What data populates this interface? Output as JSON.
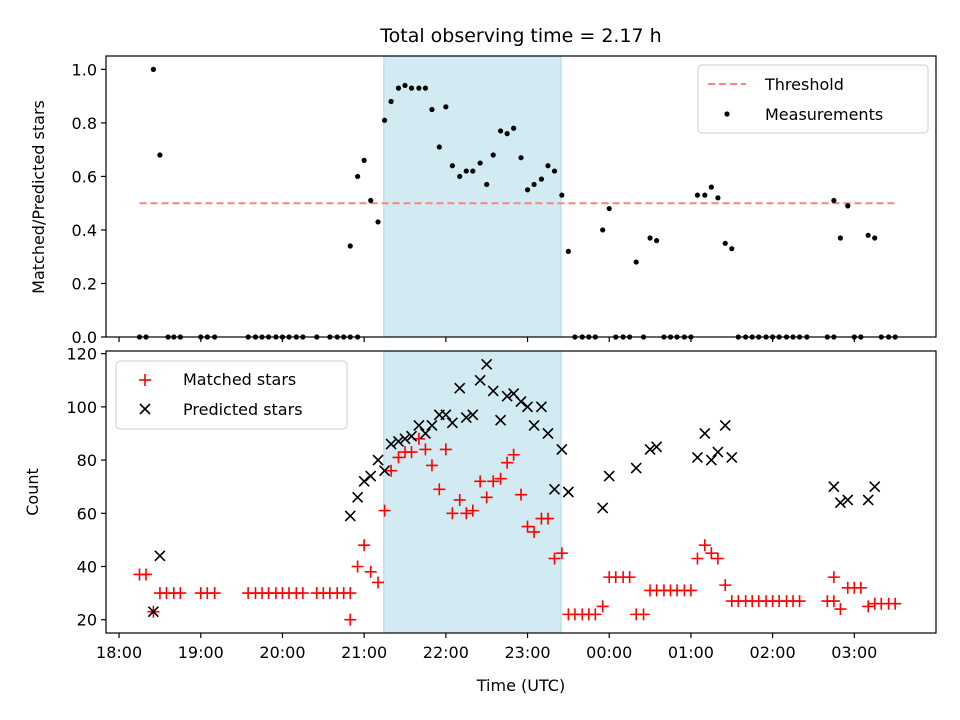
{
  "chart_data": {
    "title": "Total observing time = 2.17 h",
    "xlabel": "Time (UTC)",
    "x_unit": "hours since 18:00 UTC (x axis spans 17:50 to 04:00 next day)",
    "xlim": [
      -0.16,
      10.0
    ],
    "xticks": [
      {
        "x": 0,
        "label": "18:00"
      },
      {
        "x": 1,
        "label": "19:00"
      },
      {
        "x": 2,
        "label": "20:00"
      },
      {
        "x": 3,
        "label": "21:00"
      },
      {
        "x": 4,
        "label": "22:00"
      },
      {
        "x": 5,
        "label": "23:00"
      },
      {
        "x": 6,
        "label": "00:00"
      },
      {
        "x": 7,
        "label": "01:00"
      },
      {
        "x": 8,
        "label": "02:00"
      },
      {
        "x": 9,
        "label": "03:00"
      }
    ],
    "shaded_interval": {
      "start": 3.24,
      "end": 5.41,
      "color": "#add8e6"
    },
    "top": {
      "type": "scatter",
      "ylabel": "Matched/Predicted stars",
      "ylim": [
        0,
        1.05
      ],
      "yticks": [
        0.0,
        0.2,
        0.4,
        0.6,
        0.8,
        1.0
      ],
      "ytick_labels": [
        "0.0",
        "0.2",
        "0.4",
        "0.6",
        "0.8",
        "1.0"
      ],
      "legend": {
        "position": "upper right",
        "entries": [
          "Threshold",
          "Measurements"
        ]
      },
      "threshold": {
        "name": "Threshold",
        "value": 0.5,
        "x_start": 0.25,
        "x_end": 9.5,
        "color": "#ff8080",
        "style": "dashed"
      },
      "measurements": {
        "name": "Measurements",
        "color": "#000000",
        "points": [
          [
            0.25,
            0.0
          ],
          [
            0.33,
            0.0
          ],
          [
            0.42,
            1.0
          ],
          [
            0.5,
            0.68
          ],
          [
            0.6,
            0.0
          ],
          [
            0.67,
            0.0
          ],
          [
            0.75,
            0.0
          ],
          [
            1.0,
            0.0
          ],
          [
            1.08,
            0.0
          ],
          [
            1.17,
            0.0
          ],
          [
            1.58,
            0.0
          ],
          [
            1.67,
            0.0
          ],
          [
            1.75,
            0.0
          ],
          [
            1.83,
            0.0
          ],
          [
            1.92,
            0.0
          ],
          [
            2.0,
            0.0
          ],
          [
            2.08,
            0.0
          ],
          [
            2.17,
            0.0
          ],
          [
            2.25,
            0.0
          ],
          [
            2.42,
            0.0
          ],
          [
            2.58,
            0.0
          ],
          [
            2.67,
            0.0
          ],
          [
            2.75,
            0.0
          ],
          [
            2.83,
            0.0
          ],
          [
            2.92,
            0.0
          ],
          [
            2.83,
            0.34
          ],
          [
            2.92,
            0.6
          ],
          [
            3.0,
            0.66
          ],
          [
            3.08,
            0.51
          ],
          [
            3.17,
            0.43
          ],
          [
            3.25,
            0.81
          ],
          [
            3.33,
            0.88
          ],
          [
            3.42,
            0.93
          ],
          [
            3.5,
            0.94
          ],
          [
            3.58,
            0.93
          ],
          [
            3.67,
            0.93
          ],
          [
            3.75,
            0.93
          ],
          [
            3.83,
            0.85
          ],
          [
            3.92,
            0.71
          ],
          [
            4.0,
            0.86
          ],
          [
            4.08,
            0.64
          ],
          [
            4.17,
            0.6
          ],
          [
            4.25,
            0.62
          ],
          [
            4.33,
            0.62
          ],
          [
            4.42,
            0.65
          ],
          [
            4.5,
            0.57
          ],
          [
            4.58,
            0.68
          ],
          [
            4.67,
            0.77
          ],
          [
            4.75,
            0.76
          ],
          [
            4.83,
            0.78
          ],
          [
            4.92,
            0.67
          ],
          [
            5.0,
            0.55
          ],
          [
            5.08,
            0.57
          ],
          [
            5.17,
            0.59
          ],
          [
            5.25,
            0.64
          ],
          [
            5.33,
            0.62
          ],
          [
            5.42,
            0.53
          ],
          [
            5.5,
            0.32
          ],
          [
            5.58,
            0.0
          ],
          [
            5.67,
            0.0
          ],
          [
            5.75,
            0.0
          ],
          [
            5.83,
            0.0
          ],
          [
            5.92,
            0.4
          ],
          [
            6.0,
            0.48
          ],
          [
            6.08,
            0.0
          ],
          [
            6.17,
            0.0
          ],
          [
            6.25,
            0.0
          ],
          [
            6.33,
            0.28
          ],
          [
            6.42,
            0.0
          ],
          [
            6.5,
            0.37
          ],
          [
            6.58,
            0.36
          ],
          [
            6.67,
            0.0
          ],
          [
            6.75,
            0.0
          ],
          [
            6.83,
            0.0
          ],
          [
            6.92,
            0.0
          ],
          [
            7.0,
            0.0
          ],
          [
            7.08,
            0.53
          ],
          [
            7.17,
            0.53
          ],
          [
            7.25,
            0.56
          ],
          [
            7.33,
            0.52
          ],
          [
            7.42,
            0.35
          ],
          [
            7.5,
            0.33
          ],
          [
            7.58,
            0.0
          ],
          [
            7.67,
            0.0
          ],
          [
            7.75,
            0.0
          ],
          [
            7.83,
            0.0
          ],
          [
            7.92,
            0.0
          ],
          [
            8.0,
            0.0
          ],
          [
            8.08,
            0.0
          ],
          [
            8.17,
            0.0
          ],
          [
            8.25,
            0.0
          ],
          [
            8.33,
            0.0
          ],
          [
            8.42,
            0.0
          ],
          [
            8.67,
            0.0
          ],
          [
            8.75,
            0.0
          ],
          [
            8.75,
            0.51
          ],
          [
            8.83,
            0.37
          ],
          [
            8.92,
            0.49
          ],
          [
            9.0,
            0.0
          ],
          [
            9.08,
            0.0
          ],
          [
            9.17,
            0.38
          ],
          [
            9.25,
            0.37
          ],
          [
            9.33,
            0.0
          ],
          [
            9.42,
            0.0
          ],
          [
            9.5,
            0.0
          ]
        ]
      }
    },
    "bottom": {
      "type": "scatter",
      "ylabel": "Count",
      "ylim": [
        15,
        121
      ],
      "yticks": [
        20,
        40,
        60,
        80,
        100,
        120
      ],
      "ytick_labels": [
        "20",
        "40",
        "60",
        "80",
        "100",
        "120"
      ],
      "legend": {
        "position": "upper left",
        "entries": [
          "Matched stars",
          "Predicted stars"
        ]
      },
      "series": [
        {
          "name": "Matched stars",
          "marker": "+",
          "color": "#ff0000",
          "points": [
            [
              0.25,
              37
            ],
            [
              0.33,
              37
            ],
            [
              0.42,
              23
            ],
            [
              0.5,
              30
            ],
            [
              0.58,
              30
            ],
            [
              0.67,
              30
            ],
            [
              0.75,
              30
            ],
            [
              1.0,
              30
            ],
            [
              1.08,
              30
            ],
            [
              1.17,
              30
            ],
            [
              1.58,
              30
            ],
            [
              1.67,
              30
            ],
            [
              1.75,
              30
            ],
            [
              1.83,
              30
            ],
            [
              1.92,
              30
            ],
            [
              2.0,
              30
            ],
            [
              2.08,
              30
            ],
            [
              2.17,
              30
            ],
            [
              2.25,
              30
            ],
            [
              2.42,
              30
            ],
            [
              2.5,
              30
            ],
            [
              2.58,
              30
            ],
            [
              2.67,
              30
            ],
            [
              2.75,
              30
            ],
            [
              2.83,
              30
            ],
            [
              2.83,
              20
            ],
            [
              2.92,
              40
            ],
            [
              3.0,
              48
            ],
            [
              3.08,
              38
            ],
            [
              3.17,
              34
            ],
            [
              3.25,
              61
            ],
            [
              3.33,
              76
            ],
            [
              3.42,
              81
            ],
            [
              3.5,
              83
            ],
            [
              3.58,
              83
            ],
            [
              3.67,
              88
            ],
            [
              3.75,
              84
            ],
            [
              3.83,
              78
            ],
            [
              3.92,
              69
            ],
            [
              4.0,
              84
            ],
            [
              4.08,
              60
            ],
            [
              4.17,
              65
            ],
            [
              4.25,
              60
            ],
            [
              4.33,
              61
            ],
            [
              4.42,
              72
            ],
            [
              4.5,
              66
            ],
            [
              4.58,
              72
            ],
            [
              4.67,
              73
            ],
            [
              4.75,
              79
            ],
            [
              4.83,
              82
            ],
            [
              4.92,
              67
            ],
            [
              5.0,
              55
            ],
            [
              5.08,
              53
            ],
            [
              5.17,
              58
            ],
            [
              5.25,
              58
            ],
            [
              5.33,
              43
            ],
            [
              5.42,
              45
            ],
            [
              5.5,
              22
            ],
            [
              5.58,
              22
            ],
            [
              5.67,
              22
            ],
            [
              5.75,
              22
            ],
            [
              5.83,
              22
            ],
            [
              5.92,
              25
            ],
            [
              6.0,
              36
            ],
            [
              6.08,
              36
            ],
            [
              6.17,
              36
            ],
            [
              6.25,
              36
            ],
            [
              6.33,
              22
            ],
            [
              6.42,
              22
            ],
            [
              6.5,
              31
            ],
            [
              6.58,
              31
            ],
            [
              6.67,
              31
            ],
            [
              6.75,
              31
            ],
            [
              6.83,
              31
            ],
            [
              6.92,
              31
            ],
            [
              7.0,
              31
            ],
            [
              7.08,
              43
            ],
            [
              7.17,
              48
            ],
            [
              7.25,
              45
            ],
            [
              7.33,
              43
            ],
            [
              7.42,
              33
            ],
            [
              7.5,
              27
            ],
            [
              7.58,
              27
            ],
            [
              7.67,
              27
            ],
            [
              7.75,
              27
            ],
            [
              7.83,
              27
            ],
            [
              7.92,
              27
            ],
            [
              8.0,
              27
            ],
            [
              8.08,
              27
            ],
            [
              8.17,
              27
            ],
            [
              8.25,
              27
            ],
            [
              8.33,
              27
            ],
            [
              8.67,
              27
            ],
            [
              8.75,
              27
            ],
            [
              8.75,
              36
            ],
            [
              8.83,
              24
            ],
            [
              8.92,
              32
            ],
            [
              9.0,
              32
            ],
            [
              9.08,
              32
            ],
            [
              9.17,
              25
            ],
            [
              9.25,
              26
            ],
            [
              9.33,
              26
            ],
            [
              9.42,
              26
            ],
            [
              9.5,
              26
            ]
          ]
        },
        {
          "name": "Predicted stars",
          "marker": "x",
          "color": "#000000",
          "points": [
            [
              0.42,
              23
            ],
            [
              0.5,
              44
            ],
            [
              2.83,
              59
            ],
            [
              2.92,
              66
            ],
            [
              3.0,
              72
            ],
            [
              3.08,
              74
            ],
            [
              3.17,
              80
            ],
            [
              3.25,
              76
            ],
            [
              3.33,
              86
            ],
            [
              3.42,
              87
            ],
            [
              3.5,
              88
            ],
            [
              3.58,
              89
            ],
            [
              3.67,
              93
            ],
            [
              3.75,
              90
            ],
            [
              3.83,
              93
            ],
            [
              3.92,
              97
            ],
            [
              4.0,
              97
            ],
            [
              4.08,
              94
            ],
            [
              4.17,
              107
            ],
            [
              4.25,
              96
            ],
            [
              4.33,
              97
            ],
            [
              4.42,
              110
            ],
            [
              4.5,
              116
            ],
            [
              4.58,
              106
            ],
            [
              4.67,
              95
            ],
            [
              4.75,
              104
            ],
            [
              4.83,
              105
            ],
            [
              4.92,
              102
            ],
            [
              5.0,
              100
            ],
            [
              5.08,
              93
            ],
            [
              5.17,
              100
            ],
            [
              5.25,
              90
            ],
            [
              5.33,
              69
            ],
            [
              5.42,
              84
            ],
            [
              5.5,
              68
            ],
            [
              5.92,
              62
            ],
            [
              6.0,
              74
            ],
            [
              6.33,
              77
            ],
            [
              6.5,
              84
            ],
            [
              6.58,
              85
            ],
            [
              7.08,
              81
            ],
            [
              7.17,
              90
            ],
            [
              7.25,
              80
            ],
            [
              7.33,
              83
            ],
            [
              7.42,
              93
            ],
            [
              7.5,
              81
            ],
            [
              8.75,
              70
            ],
            [
              8.83,
              64
            ],
            [
              8.92,
              65
            ],
            [
              9.17,
              65
            ],
            [
              9.25,
              70
            ]
          ]
        }
      ]
    }
  }
}
